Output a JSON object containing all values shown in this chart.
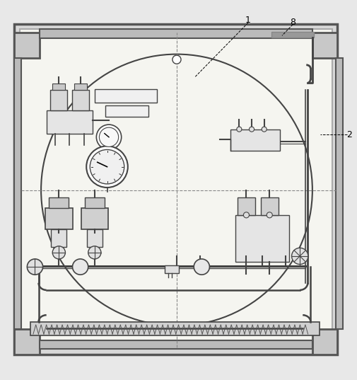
{
  "bg_color": "#e8e8e8",
  "frame_color": "#555555",
  "line_color": "#444444",
  "dashed_color": "#888888",
  "inner_bg": "#f5f5f0",
  "corner_fill": "#c8c8c8",
  "beam_fill": "#bbbbbb"
}
